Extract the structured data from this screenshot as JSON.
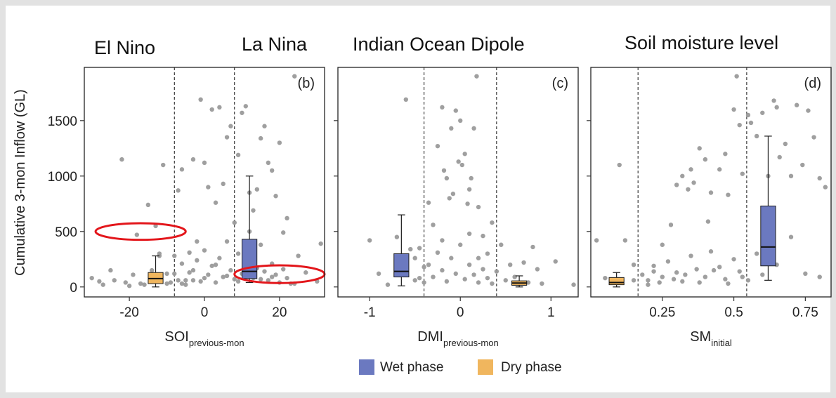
{
  "figure": {
    "headings": {
      "el_nino": "El Nino",
      "la_nina": "La Nina"
    },
    "ylabel": "Cumulative 3-mon Inflow (GL)",
    "legend": [
      {
        "label": "Wet phase",
        "color": "#6b79c0"
      },
      {
        "label": "Dry phase",
        "color": "#f0b65e"
      }
    ]
  },
  "chart_data": [
    {
      "type": "scatter",
      "panel_label": "(b)",
      "title": "",
      "xlabel_main": "SOI",
      "xlabel_sub": "previous-mon",
      "ylabel": "Cumulative 3-mon Inflow (GL)",
      "xlim": [
        -32,
        32
      ],
      "ylim": [
        -90,
        1980
      ],
      "xticks": [
        -20,
        0,
        20
      ],
      "xtick_labels": [
        "-20",
        "0",
        "20"
      ],
      "yticks": [
        0,
        500,
        1000,
        1500
      ],
      "ytick_labels": [
        "0",
        "500",
        "1000",
        "1500"
      ],
      "thresholds": [
        -8,
        8
      ],
      "points_color": "#9a9a9a",
      "points": [
        [
          -30,
          80
        ],
        [
          -28,
          50
        ],
        [
          -27,
          20
        ],
        [
          -25,
          150
        ],
        [
          -24,
          60
        ],
        [
          -22,
          1150
        ],
        [
          -21,
          40
        ],
        [
          -20,
          10
        ],
        [
          -19,
          110
        ],
        [
          -18,
          470
        ],
        [
          -17,
          30
        ],
        [
          -16,
          20
        ],
        [
          -15,
          740
        ],
        [
          -14,
          60
        ],
        [
          -13,
          550
        ],
        [
          -12,
          280
        ],
        [
          -11,
          1100
        ],
        [
          -10,
          30
        ],
        [
          -9,
          40
        ],
        [
          -8,
          120
        ],
        [
          -7,
          870
        ],
        [
          -6,
          1060
        ],
        [
          -5,
          60
        ],
        [
          -4,
          130
        ],
        [
          -3,
          1150
        ],
        [
          -2,
          410
        ],
        [
          -1,
          1690
        ],
        [
          0,
          1120
        ],
        [
          1,
          900
        ],
        [
          2,
          1600
        ],
        [
          3,
          760
        ],
        [
          4,
          1620
        ],
        [
          5,
          930
        ],
        [
          6,
          1350
        ],
        [
          7,
          1450
        ],
        [
          8,
          580
        ],
        [
          9,
          1190
        ],
        [
          10,
          1570
        ],
        [
          11,
          1630
        ],
        [
          12,
          850
        ],
        [
          13,
          690
        ],
        [
          14,
          880
        ],
        [
          15,
          1340
        ],
        [
          16,
          1450
        ],
        [
          17,
          1120
        ],
        [
          18,
          1050
        ],
        [
          19,
          820
        ],
        [
          20,
          1300
        ],
        [
          21,
          490
        ],
        [
          22,
          620
        ],
        [
          24,
          1900
        ],
        [
          25,
          280
        ],
        [
          27,
          130
        ],
        [
          30,
          50
        ],
        [
          31,
          390
        ],
        [
          -14,
          150
        ],
        [
          -10,
          120
        ],
        [
          -6,
          210
        ],
        [
          -5,
          20
        ],
        [
          -4,
          310
        ],
        [
          -3,
          60
        ],
        [
          -2,
          240
        ],
        [
          -1,
          50
        ],
        [
          0,
          330
        ],
        [
          1,
          110
        ],
        [
          2,
          190
        ],
        [
          3,
          40
        ],
        [
          4,
          260
        ],
        [
          5,
          90
        ],
        [
          6,
          410
        ],
        [
          7,
          150
        ],
        [
          8,
          70
        ],
        [
          9,
          300
        ],
        [
          10,
          120
        ],
        [
          11,
          230
        ],
        [
          12,
          500
        ],
        [
          13,
          80
        ],
        [
          14,
          170
        ],
        [
          15,
          380
        ],
        [
          16,
          140
        ],
        [
          17,
          60
        ],
        [
          18,
          210
        ],
        [
          19,
          110
        ],
        [
          20,
          40
        ],
        [
          21,
          160
        ],
        [
          22,
          80
        ],
        [
          23,
          30
        ],
        [
          -12,
          300
        ],
        [
          -8,
          280
        ],
        [
          -7,
          60
        ],
        [
          -6,
          30
        ],
        [
          -3,
          150
        ],
        [
          0,
          80
        ],
        [
          3,
          200
        ],
        [
          6,
          100
        ],
        [
          9,
          50
        ],
        [
          15,
          70
        ],
        [
          18,
          90
        ],
        [
          24,
          30
        ]
      ],
      "boxes": [
        {
          "phase": "Dry phase",
          "x": -13,
          "whisker_low": 0,
          "q1": 30,
          "median": 75,
          "q3": 130,
          "whisker_high": 280
        },
        {
          "phase": "Wet phase",
          "x": 12,
          "whisker_low": 40,
          "q1": 75,
          "median": 140,
          "q3": 430,
          "whisker_high": 1000
        }
      ],
      "ellipses": [
        {
          "cx": -17,
          "cy": 500,
          "rx": 12,
          "ry": 75
        },
        {
          "cx": 20,
          "cy": 115,
          "rx": 12,
          "ry": 80
        }
      ]
    },
    {
      "type": "scatter",
      "panel_label": "(c)",
      "title": "Indian Ocean Dipole",
      "xlabel_main": "DMI",
      "xlabel_sub": "previous-mon",
      "xlim": [
        -1.35,
        1.3
      ],
      "ylim": [
        -90,
        1980
      ],
      "xticks": [
        -1,
        0,
        1
      ],
      "xtick_labels": [
        "-1",
        "0",
        "1"
      ],
      "thresholds": [
        -0.4,
        0.4
      ],
      "points_color": "#9a9a9a",
      "points": [
        [
          -1.0,
          420
        ],
        [
          -0.9,
          120
        ],
        [
          -0.8,
          20
        ],
        [
          -0.7,
          450
        ],
        [
          -0.6,
          1690
        ],
        [
          -0.55,
          340
        ],
        [
          -0.5,
          260
        ],
        [
          -0.45,
          80
        ],
        [
          -0.4,
          180
        ],
        [
          -0.35,
          760
        ],
        [
          -0.3,
          560
        ],
        [
          -0.25,
          1270
        ],
        [
          -0.2,
          1620
        ],
        [
          -0.18,
          1050
        ],
        [
          -0.15,
          980
        ],
        [
          -0.12,
          800
        ],
        [
          -0.1,
          1430
        ],
        [
          -0.08,
          840
        ],
        [
          -0.05,
          1590
        ],
        [
          -0.02,
          1130
        ],
        [
          0.0,
          1500
        ],
        [
          0.02,
          1100
        ],
        [
          0.05,
          1200
        ],
        [
          0.08,
          750
        ],
        [
          0.1,
          880
        ],
        [
          0.12,
          980
        ],
        [
          0.15,
          1430
        ],
        [
          0.18,
          1900
        ],
        [
          0.2,
          720
        ],
        [
          0.25,
          460
        ],
        [
          0.3,
          300
        ],
        [
          0.35,
          580
        ],
        [
          0.45,
          380
        ],
        [
          0.55,
          200
        ],
        [
          0.7,
          220
        ],
        [
          0.8,
          360
        ],
        [
          0.85,
          160
        ],
        [
          1.05,
          230
        ],
        [
          1.25,
          20
        ],
        [
          -0.6,
          130
        ],
        [
          -0.5,
          60
        ],
        [
          -0.4,
          40
        ],
        [
          -0.35,
          200
        ],
        [
          -0.3,
          90
        ],
        [
          -0.25,
          310
        ],
        [
          -0.2,
          150
        ],
        [
          -0.15,
          50
        ],
        [
          -0.1,
          260
        ],
        [
          -0.05,
          120
        ],
        [
          0.0,
          380
        ],
        [
          0.05,
          70
        ],
        [
          0.1,
          200
        ],
        [
          0.15,
          110
        ],
        [
          0.2,
          40
        ],
        [
          0.25,
          160
        ],
        [
          0.3,
          80
        ],
        [
          0.35,
          30
        ],
        [
          0.4,
          140
        ],
        [
          0.5,
          60
        ],
        [
          0.6,
          90
        ],
        [
          0.75,
          40
        ],
        [
          0.9,
          30
        ],
        [
          -0.45,
          350
        ],
        [
          -0.2,
          420
        ],
        [
          0.1,
          480
        ],
        [
          0.2,
          260
        ]
      ],
      "boxes": [
        {
          "phase": "Wet phase",
          "x": -0.65,
          "whisker_low": 10,
          "q1": 90,
          "median": 140,
          "q3": 300,
          "whisker_high": 650
        },
        {
          "phase": "Dry phase",
          "x": 0.65,
          "whisker_low": 0,
          "q1": 15,
          "median": 35,
          "q3": 55,
          "whisker_high": 100
        }
      ]
    },
    {
      "type": "scatter",
      "panel_label": "(d)",
      "title": "Soil moisture level",
      "xlabel_main": "SM",
      "xlabel_sub": "initial",
      "xlim": [
        0.0,
        0.84
      ],
      "ylim": [
        -90,
        1980
      ],
      "xticks": [
        0.25,
        0.5,
        0.75
      ],
      "xtick_labels": [
        "0.25",
        "0.5",
        "0.75"
      ],
      "thresholds": [
        0.165,
        0.545
      ],
      "points_color": "#9a9a9a",
      "points": [
        [
          0.02,
          420
        ],
        [
          0.05,
          80
        ],
        [
          0.1,
          1100
        ],
        [
          0.12,
          420
        ],
        [
          0.15,
          60
        ],
        [
          0.2,
          20
        ],
        [
          0.22,
          140
        ],
        [
          0.25,
          380
        ],
        [
          0.28,
          560
        ],
        [
          0.3,
          920
        ],
        [
          0.32,
          1000
        ],
        [
          0.34,
          880
        ],
        [
          0.35,
          1060
        ],
        [
          0.36,
          940
        ],
        [
          0.38,
          1250
        ],
        [
          0.4,
          1150
        ],
        [
          0.41,
          590
        ],
        [
          0.42,
          850
        ],
        [
          0.45,
          1060
        ],
        [
          0.47,
          1200
        ],
        [
          0.48,
          830
        ],
        [
          0.5,
          1600
        ],
        [
          0.51,
          1900
        ],
        [
          0.52,
          1460
        ],
        [
          0.53,
          1020
        ],
        [
          0.55,
          1550
        ],
        [
          0.56,
          1480
        ],
        [
          0.58,
          1360
        ],
        [
          0.6,
          1570
        ],
        [
          0.62,
          1000
        ],
        [
          0.64,
          1680
        ],
        [
          0.65,
          1620
        ],
        [
          0.66,
          1170
        ],
        [
          0.68,
          1290
        ],
        [
          0.7,
          1000
        ],
        [
          0.72,
          1640
        ],
        [
          0.74,
          1100
        ],
        [
          0.76,
          1590
        ],
        [
          0.78,
          1350
        ],
        [
          0.8,
          980
        ],
        [
          0.82,
          900
        ],
        [
          0.15,
          200
        ],
        [
          0.18,
          110
        ],
        [
          0.2,
          60
        ],
        [
          0.22,
          190
        ],
        [
          0.25,
          90
        ],
        [
          0.27,
          230
        ],
        [
          0.3,
          130
        ],
        [
          0.32,
          50
        ],
        [
          0.35,
          280
        ],
        [
          0.37,
          160
        ],
        [
          0.4,
          90
        ],
        [
          0.42,
          320
        ],
        [
          0.45,
          180
        ],
        [
          0.47,
          70
        ],
        [
          0.5,
          250
        ],
        [
          0.52,
          140
        ],
        [
          0.55,
          60
        ],
        [
          0.58,
          300
        ],
        [
          0.6,
          110
        ],
        [
          0.65,
          200
        ],
        [
          0.7,
          450
        ],
        [
          0.75,
          120
        ],
        [
          0.8,
          90
        ],
        [
          0.24,
          40
        ],
        [
          0.29,
          70
        ],
        [
          0.33,
          110
        ],
        [
          0.38,
          40
        ],
        [
          0.43,
          150
        ],
        [
          0.48,
          30
        ],
        [
          0.53,
          90
        ]
      ],
      "boxes": [
        {
          "phase": "Dry phase",
          "x": 0.09,
          "whisker_low": 0,
          "q1": 20,
          "median": 40,
          "q3": 85,
          "whisker_high": 130
        },
        {
          "phase": "Wet phase",
          "x": 0.62,
          "whisker_low": 60,
          "q1": 190,
          "median": 360,
          "q3": 730,
          "whisker_high": 1360
        }
      ]
    }
  ]
}
